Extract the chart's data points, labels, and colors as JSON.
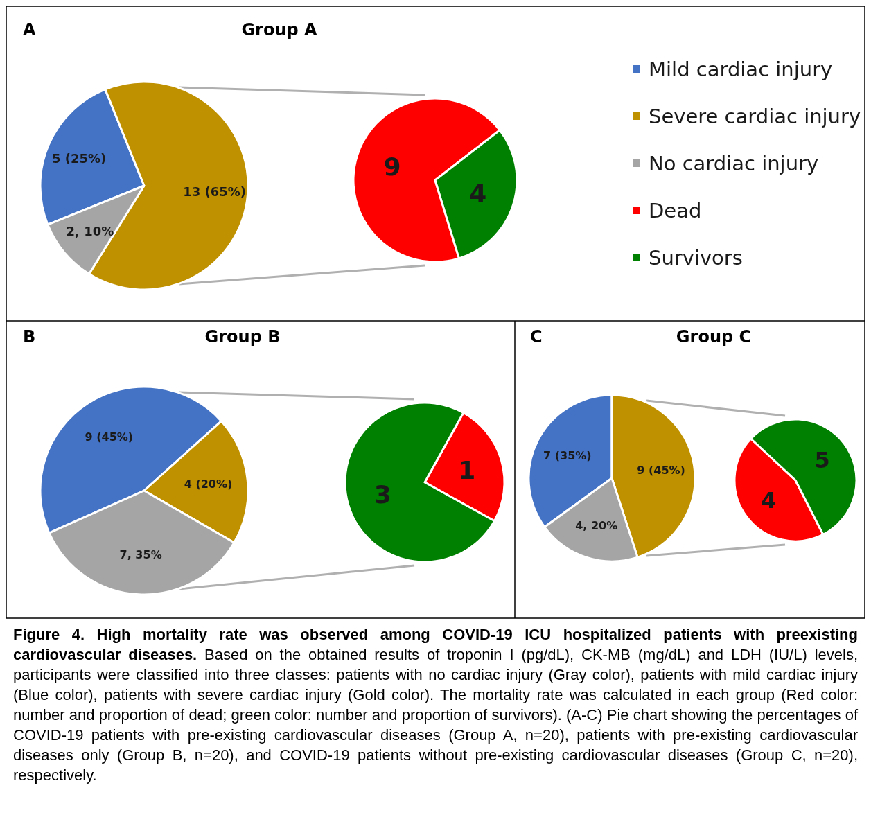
{
  "chart_data": [
    {
      "type": "pie",
      "title": "Group A",
      "categories": [
        "Mild cardiac injury",
        "Severe cardiac injury",
        "No cardiac injury"
      ],
      "values": [
        25,
        65,
        10
      ],
      "colors": [
        "#4472c4",
        "#bf9000",
        "#a5a5a5"
      ],
      "value_labels": [
        "5 (25%)",
        "13 (65%)",
        "2, 10%"
      ],
      "legend": "right",
      "annotations": [
        "A",
        "Figure 4. High mortality rate was observed among COVID-19 ICU hospitalized patients with preexisting cardiovascular diseases.",
        "Based on the obtained results of troponin I (pg/dL), CK-MB (mg/dL) and LDH (IU/L) levels, participants were classified into three classes: patients with no cardiac injury (Gray color), patients with mild cardiac injury (Blue color), patients with severe cardiac injury (Gold color). The mortality rate was calculated in each group (Red color: number and proportion of dead; green color: number and proportion of survivors). (A-C) Pie chart showing the percentages of COVID-19 patients with pre-existing cardiovascular diseases (Group A, n=20), patients with pre-existing cardiovascular diseases only (Group B, n=20), and COVID-19 patients without pre-existing cardiovascular diseases (Group C, n=20), respectively."
      ]
    },
    {
      "type": "pie",
      "categories": [
        "Dead",
        "Survivors"
      ],
      "values": [
        9,
        4
      ],
      "colors": [
        "#ff0000",
        "#008000"
      ],
      "data_labels": true,
      "legend": "right"
    },
    {
      "type": "pie",
      "title": "Group B",
      "categories": [
        null,
        null,
        null
      ],
      "values": [
        45,
        20,
        35
      ],
      "colors": [
        "#4472c4",
        "#bf9000",
        "#a5a5a5"
      ],
      "value_labels": [
        "9 (45%)",
        "4 (20%)",
        "7, 35%"
      ],
      "annotations": [
        "B"
      ]
    },
    {
      "type": "pie",
      "categories": [
        null,
        null
      ],
      "values": [
        1,
        3
      ],
      "colors": [
        "#ff0000",
        "#008000"
      ],
      "data_labels": true
    },
    {
      "type": "pie",
      "title": "Group C",
      "categories": [
        null,
        null,
        null
      ],
      "values": [
        35,
        45,
        20
      ],
      "colors": [
        "#4472c4",
        "#bf9000",
        "#a5a5a5"
      ],
      "value_labels": [
        "7 (35%)",
        "9 (45%)",
        "4, 20%"
      ],
      "annotations": [
        "C"
      ]
    },
    {
      "type": "pie",
      "categories": [
        null,
        null
      ],
      "values": [
        4,
        5
      ],
      "colors": [
        "#ff0000",
        "#008000"
      ],
      "data_labels": true
    }
  ]
}
